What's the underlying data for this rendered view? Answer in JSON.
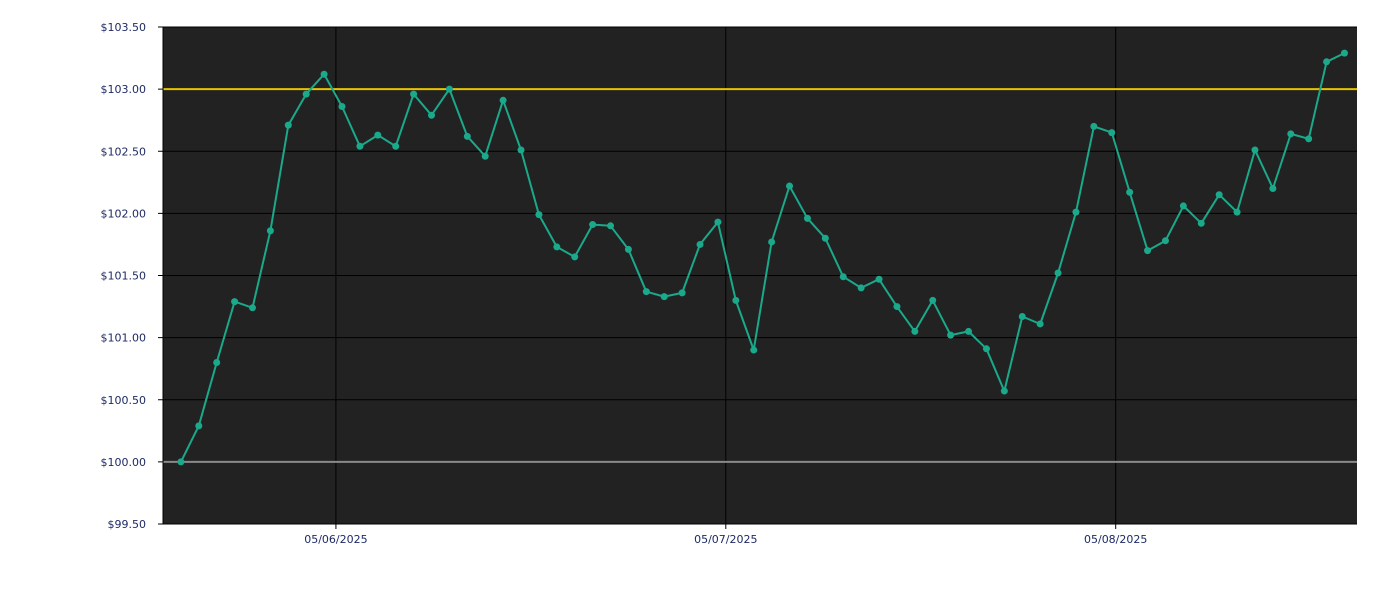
{
  "chart_data": {
    "type": "line",
    "title": "",
    "xlabel": "",
    "ylabel": "",
    "ylim": [
      99.5,
      103.5
    ],
    "y_ticks": [
      99.5,
      100.0,
      100.5,
      101.0,
      101.5,
      102.0,
      102.5,
      103.0,
      103.5
    ],
    "y_tick_labels": [
      "$99.50",
      "$100.00",
      "$100.50",
      "$101.00",
      "$101.50",
      "$102.00",
      "$102.50",
      "$103.00",
      "$103.50"
    ],
    "x_ticks": [
      9.66,
      31.44,
      53.22
    ],
    "x_tick_labels": [
      "05/06/2025",
      "05/07/2025",
      "05/08/2025"
    ],
    "xlim": [
      0,
      66.7
    ],
    "grid": true,
    "background": "#222222",
    "reference_lines": [
      {
        "y": 103.0,
        "color": "#e8c300"
      },
      {
        "y": 100.0,
        "color": "#8a8a8a"
      }
    ],
    "series": [
      {
        "color": "#1aa98a",
        "x": [
          1,
          2,
          3,
          4,
          5,
          6,
          7,
          8,
          9,
          10,
          11,
          12,
          13,
          14,
          15,
          16,
          17,
          18,
          19,
          20,
          21,
          22,
          23,
          24,
          25,
          26,
          27,
          28,
          29,
          30,
          31,
          32,
          33,
          34,
          35,
          36,
          37,
          38,
          39,
          40,
          41,
          42,
          43,
          44,
          45,
          46,
          47,
          48,
          49,
          50,
          51,
          52,
          53,
          54,
          55,
          56,
          57,
          58,
          59,
          60,
          61,
          62,
          63,
          64,
          65,
          66
        ],
        "values": [
          100.0,
          100.29,
          100.8,
          101.29,
          101.24,
          101.86,
          102.71,
          102.96,
          103.12,
          102.86,
          102.54,
          102.63,
          102.54,
          102.96,
          102.79,
          103.0,
          102.62,
          102.46,
          102.91,
          102.51,
          101.99,
          101.73,
          101.65,
          101.91,
          101.9,
          101.71,
          101.37,
          101.33,
          101.36,
          101.75,
          101.93,
          101.3,
          100.9,
          101.77,
          102.22,
          101.96,
          101.8,
          101.49,
          101.4,
          101.47,
          101.25,
          101.05,
          101.3,
          101.02,
          101.05,
          100.91,
          100.57,
          101.17,
          101.11,
          101.52,
          102.01,
          102.7,
          102.65,
          102.17,
          101.7,
          101.78,
          102.06,
          101.92,
          102.15,
          102.01,
          102.51,
          102.2,
          102.64,
          102.6,
          103.22,
          103.29
        ]
      }
    ]
  }
}
